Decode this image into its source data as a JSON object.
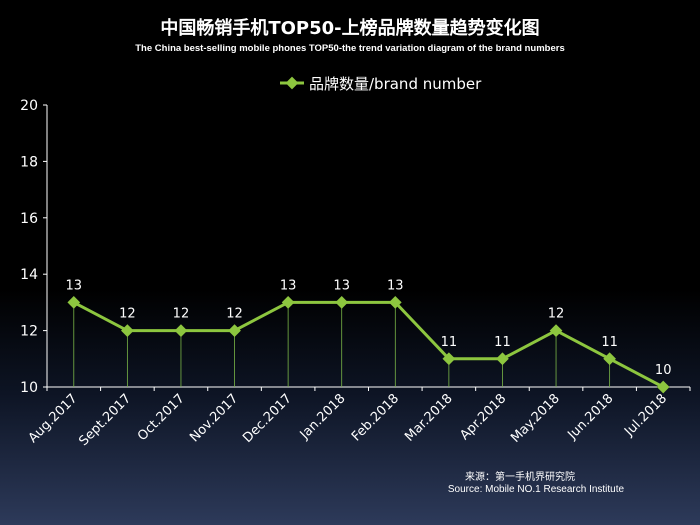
{
  "chart_data": {
    "type": "line",
    "title": "中国畅销手机TOP50-上榜品牌数量趋势变化图",
    "subtitle": "The China best-selling mobile phones TOP50-the trend variation diagram of the brand numbers",
    "categories": [
      "Aug.2017",
      "Sept.2017",
      "Oct.2017",
      "Nov.2017",
      "Dec.2017",
      "Jan.2018",
      "Feb.2018",
      "Mar.2018",
      "Apr.2018",
      "May.2018",
      "Jun.2018",
      "Jul.2018"
    ],
    "series": [
      {
        "name": "品牌数量/brand number",
        "values": [
          13,
          12,
          12,
          12,
          13,
          13,
          13,
          11,
          11,
          12,
          11,
          10
        ]
      }
    ],
    "ylim": [
      10,
      20
    ],
    "yticks": [
      "10",
      "12",
      "14",
      "16",
      "18",
      "20"
    ],
    "legend_position": "top-center",
    "grid": false,
    "drop_lines": true,
    "data_labels": true,
    "colors": {
      "series": "#8dc63f",
      "droplines": "#7ab648",
      "axis": "#ffffff"
    }
  },
  "source": {
    "line1": "来源：第一手机界研究院",
    "line2": "Source: Mobile NO.1 Research Institute"
  }
}
